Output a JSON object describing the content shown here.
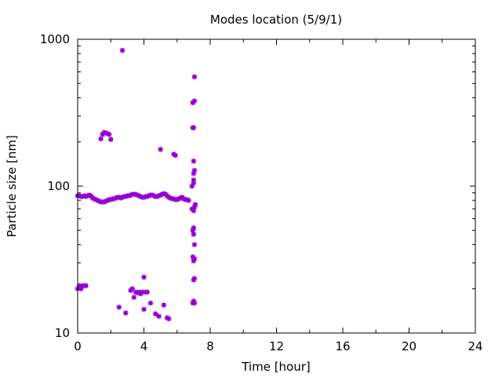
{
  "chart_data": {
    "type": "scatter",
    "title": "Modes location (5/9/1)",
    "xlabel": "Time [hour]",
    "ylabel": "Particle size [nm]",
    "xlim": [
      0,
      24
    ],
    "ylim": [
      10,
      1000
    ],
    "yscale": "log",
    "xticks": [
      0,
      4,
      8,
      12,
      16,
      20,
      24
    ],
    "xtick_labels": [
      "0",
      "4",
      "8",
      "12",
      "16",
      "20",
      "24"
    ],
    "yticks": [
      10,
      100,
      1000
    ],
    "ytick_labels": [
      "10",
      "100",
      "1000"
    ],
    "grid": false,
    "legend": "none",
    "marker_color": "#9400d3",
    "series": [
      {
        "points": [
          [
            0.0,
            86
          ],
          [
            0.1,
            86
          ],
          [
            0.2,
            85
          ],
          [
            0.3,
            85
          ],
          [
            0.4,
            86
          ],
          [
            0.5,
            85
          ],
          [
            0.6,
            86
          ],
          [
            0.7,
            87
          ],
          [
            0.8,
            86
          ],
          [
            0.9,
            83
          ],
          [
            1.0,
            82
          ],
          [
            1.1,
            81
          ],
          [
            1.2,
            80
          ],
          [
            1.3,
            79
          ],
          [
            1.4,
            78
          ],
          [
            1.5,
            78
          ],
          [
            1.6,
            78
          ],
          [
            1.7,
            79
          ],
          [
            1.8,
            80
          ],
          [
            1.9,
            81
          ],
          [
            2.0,
            81
          ],
          [
            2.1,
            82
          ],
          [
            2.2,
            82
          ],
          [
            2.3,
            83
          ],
          [
            2.4,
            84
          ],
          [
            2.5,
            84
          ],
          [
            2.6,
            83
          ],
          [
            2.7,
            84
          ],
          [
            2.8,
            85
          ],
          [
            2.9,
            85
          ],
          [
            3.0,
            86
          ],
          [
            3.1,
            86
          ],
          [
            3.2,
            87
          ],
          [
            3.3,
            88
          ],
          [
            3.4,
            88
          ],
          [
            3.5,
            88
          ],
          [
            3.6,
            87
          ],
          [
            3.7,
            86
          ],
          [
            3.8,
            85
          ],
          [
            3.9,
            84
          ],
          [
            4.0,
            84
          ],
          [
            4.1,
            85
          ],
          [
            4.2,
            85
          ],
          [
            4.3,
            86
          ],
          [
            4.4,
            87
          ],
          [
            4.5,
            87
          ],
          [
            4.6,
            86
          ],
          [
            4.7,
            85
          ],
          [
            4.8,
            85
          ],
          [
            4.9,
            86
          ],
          [
            5.0,
            87
          ],
          [
            5.1,
            88
          ],
          [
            5.2,
            89
          ],
          [
            5.3,
            88
          ],
          [
            5.4,
            86
          ],
          [
            5.5,
            84
          ],
          [
            5.6,
            83
          ],
          [
            5.7,
            82
          ],
          [
            5.8,
            82
          ],
          [
            5.9,
            81
          ],
          [
            6.0,
            81
          ],
          [
            6.1,
            82
          ],
          [
            6.2,
            83
          ],
          [
            6.3,
            84
          ],
          [
            6.4,
            82
          ],
          [
            6.5,
            81
          ],
          [
            6.6,
            81
          ],
          [
            6.7,
            80
          ],
          [
            0.0,
            20
          ],
          [
            0.1,
            21
          ],
          [
            0.2,
            20
          ],
          [
            0.3,
            21
          ],
          [
            0.4,
            21
          ],
          [
            0.5,
            21
          ],
          [
            1.4,
            210
          ],
          [
            1.5,
            225
          ],
          [
            1.6,
            232
          ],
          [
            1.7,
            230
          ],
          [
            1.8,
            228
          ],
          [
            1.9,
            225
          ],
          [
            2.0,
            208
          ],
          [
            2.5,
            15
          ],
          [
            2.7,
            840
          ],
          [
            2.9,
            13.7
          ],
          [
            3.2,
            19.5
          ],
          [
            3.3,
            20
          ],
          [
            3.4,
            17.5
          ],
          [
            3.5,
            19
          ],
          [
            3.6,
            18.8
          ],
          [
            3.7,
            19
          ],
          [
            3.8,
            18.5
          ],
          [
            3.9,
            19
          ],
          [
            4.0,
            24
          ],
          [
            4.1,
            19
          ],
          [
            4.2,
            19
          ],
          [
            4.0,
            14.5
          ],
          [
            4.4,
            16
          ],
          [
            4.7,
            13.5
          ],
          [
            4.9,
            13
          ],
          [
            5.0,
            178
          ],
          [
            5.2,
            15.5
          ],
          [
            5.4,
            12.7
          ],
          [
            5.5,
            12.5
          ],
          [
            5.8,
            165
          ],
          [
            5.9,
            162
          ],
          [
            6.9,
            100
          ],
          [
            6.95,
            250
          ],
          [
            7.0,
            250
          ],
          [
            6.95,
            370
          ],
          [
            7.05,
            380
          ],
          [
            7.05,
            555
          ],
          [
            7.0,
            148
          ],
          [
            7.0,
            122
          ],
          [
            7.05,
            128
          ],
          [
            7.0,
            110
          ],
          [
            7.0,
            105
          ],
          [
            6.9,
            70
          ],
          [
            7.0,
            68
          ],
          [
            7.05,
            72
          ],
          [
            7.1,
            75
          ],
          [
            7.0,
            52
          ],
          [
            6.95,
            50
          ],
          [
            7.0,
            47
          ],
          [
            7.05,
            40
          ],
          [
            6.95,
            33
          ],
          [
            7.0,
            31
          ],
          [
            7.05,
            32
          ],
          [
            7.0,
            23
          ],
          [
            7.05,
            23.5
          ],
          [
            6.95,
            16
          ],
          [
            7.0,
            16.5
          ],
          [
            7.05,
            16
          ]
        ]
      }
    ]
  }
}
